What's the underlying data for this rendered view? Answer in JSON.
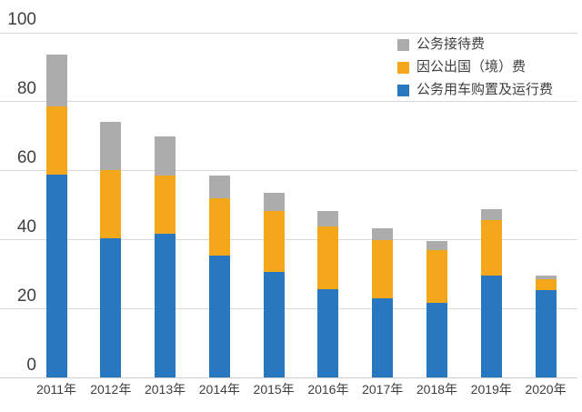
{
  "chart_data": {
    "type": "bar",
    "stacked": true,
    "title": "",
    "categories": [
      "2011年",
      "2012年",
      "2013年",
      "2014年",
      "2015年",
      "2016年",
      "2017年",
      "2018年",
      "2019年",
      "2020年"
    ],
    "series": [
      {
        "name": "公务用车购置及运行费",
        "color": "#2778BE",
        "values": [
          59.0,
          40.4,
          41.8,
          35.4,
          30.7,
          25.6,
          23.0,
          21.8,
          29.6,
          25.3
        ]
      },
      {
        "name": "因公出国（境）费",
        "color": "#F5A71C",
        "values": [
          19.7,
          19.7,
          16.8,
          16.6,
          17.6,
          18.3,
          16.9,
          15.2,
          16.2,
          3.2
        ]
      },
      {
        "name": "公务接待费",
        "color": "#ACACAC",
        "values": [
          15.1,
          14.0,
          11.4,
          6.6,
          5.2,
          4.4,
          3.4,
          2.7,
          3.1,
          1.2
        ]
      }
    ],
    "legend": {
      "position": "top-right",
      "items": [
        {
          "label": "公务接待费",
          "color": "#ACACAC"
        },
        {
          "label": "因公出国（境）费",
          "color": "#F5A71C"
        },
        {
          "label": "公务用车购置及运行费",
          "color": "#2778BE"
        }
      ]
    },
    "y_axis": {
      "min": 0,
      "max": 100,
      "tick_interval": 20,
      "tick_labels": [
        "0",
        "20",
        "40",
        "60",
        "80",
        "100"
      ],
      "grid": true
    },
    "x_axis": {
      "tick_labels": [
        "2011年",
        "2012年",
        "2013年",
        "2014年",
        "2015年",
        "2016年",
        "2017年",
        "2018年",
        "2019年",
        "2020年"
      ]
    }
  },
  "colors": {
    "background": "#FFFFFF",
    "gridline": "#D9D9D9",
    "axis_text": "#414141",
    "series_blue": "#2778BE",
    "series_orange": "#F5A71C",
    "series_gray": "#ACACAC"
  }
}
